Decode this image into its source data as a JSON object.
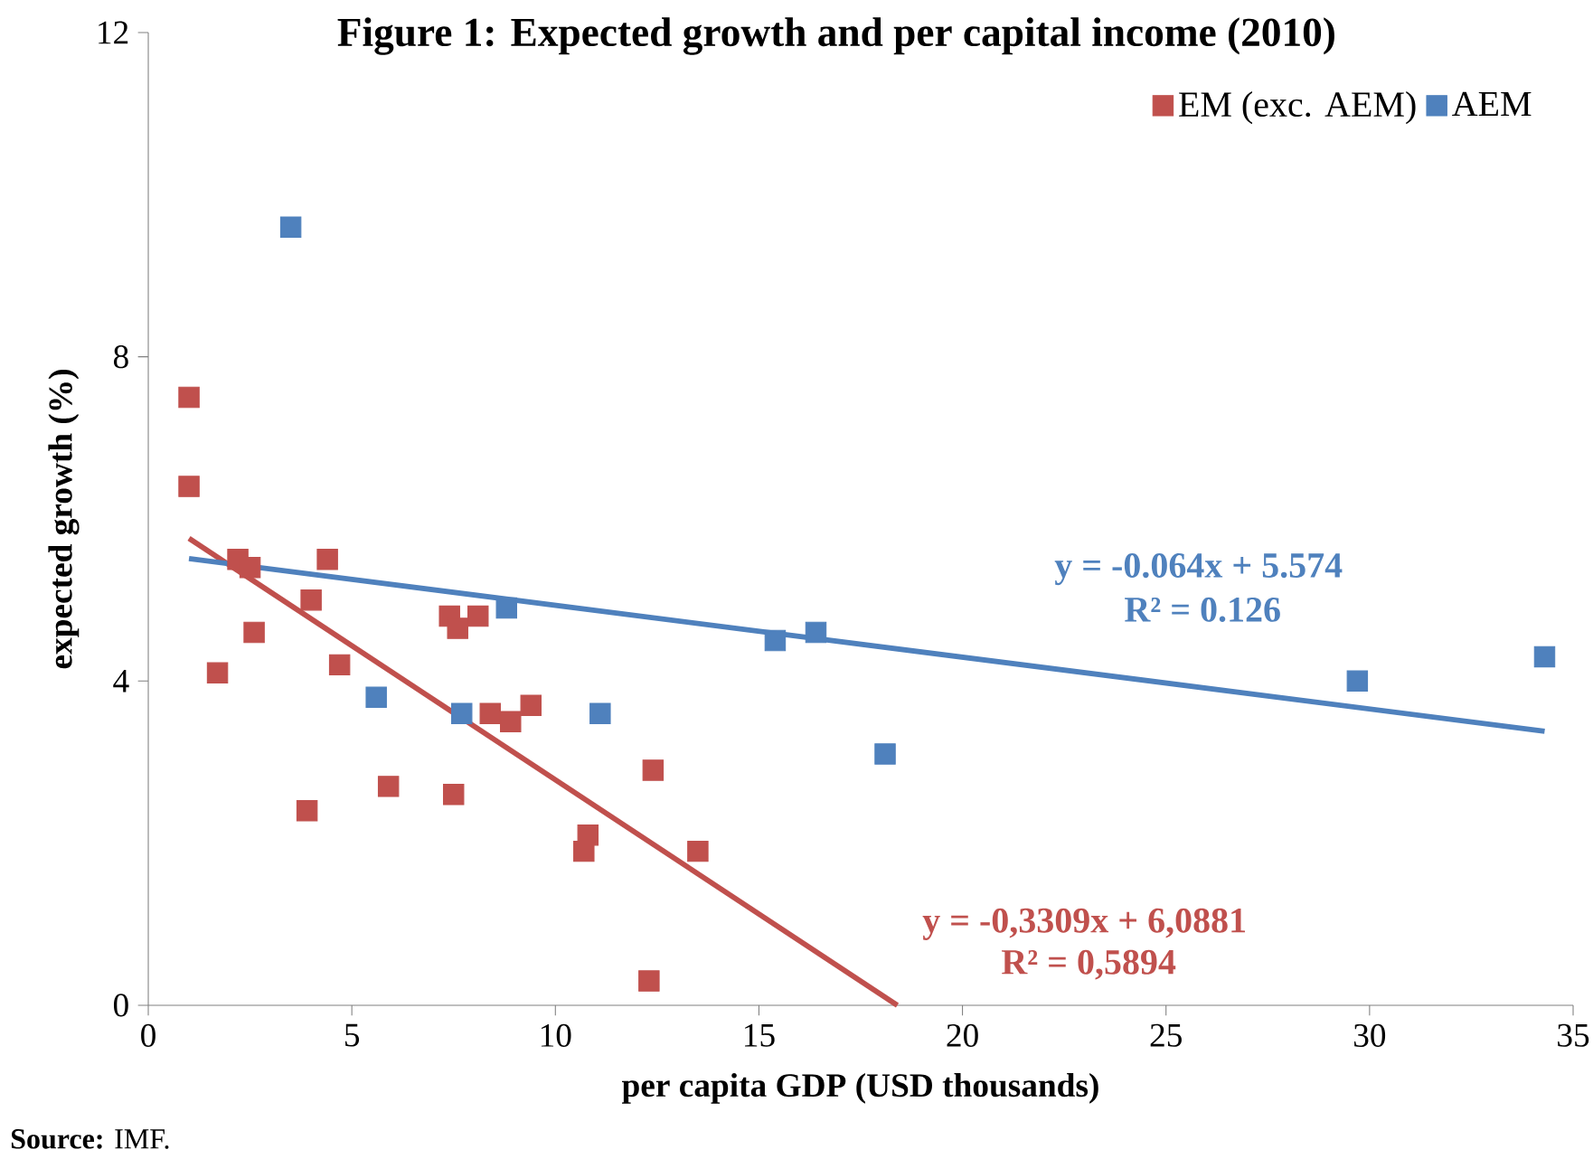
{
  "chart_data": {
    "type": "scatter",
    "title": "Figure 1: Expected growth and per capital income (2010)",
    "xlabel": "per capita GDP (USD thousands)",
    "ylabel": "expected growth (%)",
    "xlim": [
      0,
      35
    ],
    "xticks": [
      0,
      5,
      10,
      15,
      20,
      25,
      30,
      35
    ],
    "ylim": [
      0,
      12
    ],
    "yticks": [
      0,
      4,
      8,
      12
    ],
    "grid": false,
    "legend": "top right",
    "marker": "square",
    "series": [
      {
        "name": "EM (exc. AEM)",
        "color": "#c0504d",
        "x": [
          1.0,
          1.0,
          2.2,
          2.5,
          4.4,
          2.6,
          4.0,
          1.7,
          4.7,
          3.9,
          5.9,
          7.4,
          7.6,
          8.1,
          7.5,
          8.4,
          8.9,
          9.4,
          10.8,
          10.7,
          12.4,
          13.5,
          12.3
        ],
        "values": [
          7.5,
          6.4,
          5.5,
          5.4,
          5.5,
          4.6,
          5.0,
          4.1,
          4.2,
          2.4,
          2.7,
          4.8,
          4.65,
          4.8,
          2.6,
          3.6,
          3.5,
          3.7,
          2.1,
          1.9,
          2.9,
          1.9,
          0.3
        ]
      },
      {
        "name": "AEM",
        "color": "#4f81bd",
        "x": [
          3.5,
          5.6,
          7.7,
          8.8,
          11.1,
          15.4,
          16.4,
          18.1,
          29.7,
          34.3
        ],
        "values": [
          9.6,
          3.8,
          3.6,
          4.9,
          3.6,
          4.5,
          4.6,
          3.1,
          4.0,
          4.3
        ]
      },
      {
        "type": "line",
        "name": "y = -0,3309x + 6,0881",
        "color": "#c0504d",
        "marker": "none",
        "x": [
          1.0,
          18.4
        ],
        "values": [
          5.76,
          0.0
        ]
      },
      {
        "type": "line",
        "name": "y = -0.064x + 5.574",
        "color": "#4f81bd",
        "marker": "none",
        "x": [
          1.0,
          34.3
        ],
        "values": [
          5.51,
          3.38
        ]
      }
    ],
    "annotations": [
      "R² = 0,5894",
      "R² = 0.126",
      "**Source:** IMF."
    ]
  }
}
